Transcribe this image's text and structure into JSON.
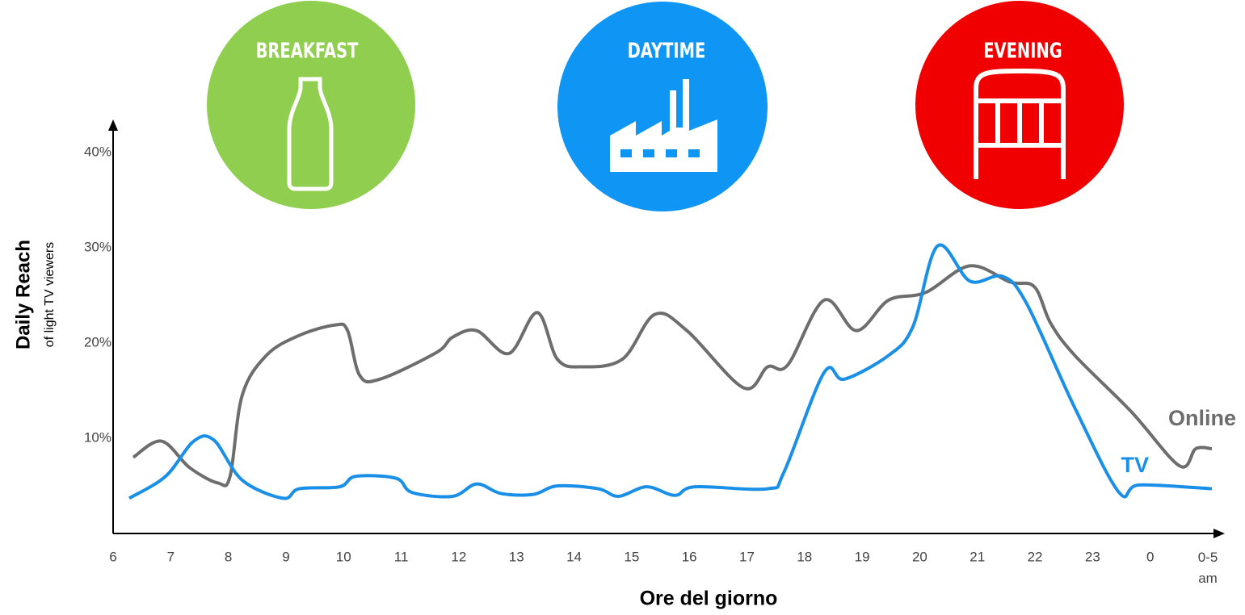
{
  "chart_data": {
    "type": "line",
    "annotations": [
      "BREAKFAST",
      "DAYTIME",
      "EVENING"
    ],
    "ylabel": "Daily Reach",
    "ysublabel": "of light TV viewers",
    "xlabel": "Ore del giorno",
    "xlim": [
      6,
      25
    ],
    "xticks": [
      6,
      7,
      8,
      9,
      10,
      11,
      12,
      13,
      14,
      15,
      16,
      17,
      18,
      19,
      20,
      21,
      22,
      23,
      {
        "value": 24,
        "label": "0"
      },
      {
        "value": 25,
        "label": "0-5 am"
      }
    ],
    "ylim": [
      0,
      40
    ],
    "yticks": [
      {
        "value": 10,
        "label": "10%"
      },
      {
        "value": 20,
        "label": "20%"
      },
      {
        "value": 30,
        "label": "30%"
      },
      {
        "value": 40,
        "label": "40%"
      }
    ],
    "series": [
      {
        "name": "Online",
        "color": "#6d6d6d",
        "x": [
          6.35,
          6.84,
          7.33,
          7.82,
          8.03,
          8.24,
          8.66,
          9.23,
          9.86,
          10.07,
          10.28,
          10.63,
          11.61,
          11.89,
          12.31,
          12.87,
          13.36,
          13.71,
          14.13,
          14.84,
          15.4,
          15.96,
          16.94,
          17.36,
          17.71,
          18.34,
          18.9,
          19.46,
          20.1,
          20.87,
          21.57,
          21.99,
          22.27,
          22.69,
          23.67,
          24.51,
          24.79,
          25.07
        ],
        "values": [
          8.0,
          9.7,
          6.9,
          5.3,
          6.0,
          14.5,
          18.7,
          20.8,
          21.9,
          21.3,
          16.6,
          16.2,
          19.0,
          20.6,
          21.3,
          18.9,
          23.2,
          18.3,
          17.5,
          18.3,
          23.0,
          21.3,
          15.3,
          17.5,
          17.7,
          24.5,
          21.3,
          24.5,
          25.3,
          28.1,
          26.4,
          25.9,
          22.1,
          18.7,
          12.8,
          7.1,
          8.9,
          8.9
        ]
      },
      {
        "name": "TV",
        "color": "#1a8fe8",
        "x": [
          6.28,
          6.91,
          7.4,
          7.75,
          8.24,
          8.95,
          9.23,
          9.93,
          10.21,
          10.91,
          11.19,
          11.89,
          12.31,
          12.73,
          13.29,
          13.71,
          14.42,
          14.77,
          15.26,
          15.75,
          16.1,
          17.36,
          17.64,
          18.34,
          18.69,
          19.46,
          19.88,
          20.31,
          20.87,
          21.43,
          21.85,
          22.69,
          23.46,
          23.81,
          25.07
        ],
        "values": [
          3.7,
          6.0,
          9.7,
          9.8,
          5.6,
          3.7,
          4.7,
          4.9,
          6.0,
          5.8,
          4.3,
          3.9,
          5.2,
          4.2,
          4.1,
          5.0,
          4.7,
          3.9,
          4.9,
          4.0,
          4.9,
          4.7,
          6.4,
          16.9,
          16.2,
          18.7,
          21.7,
          30.2,
          26.5,
          27.0,
          24.2,
          13.2,
          4.3,
          5.1,
          4.7
        ]
      }
    ]
  }
}
